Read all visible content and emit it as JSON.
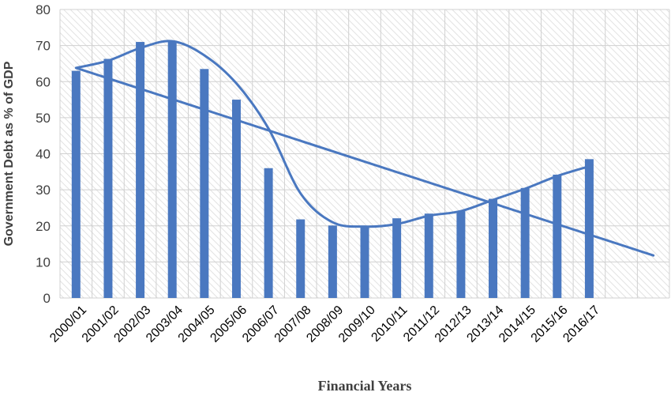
{
  "chart_data": {
    "type": "bar",
    "title": "",
    "xlabel": "Financial Years",
    "ylabel": "Government Debt as  % of GDP",
    "ylim": [
      0,
      80
    ],
    "yticks": [
      0,
      10,
      20,
      30,
      40,
      50,
      60,
      70,
      80
    ],
    "grid": true,
    "categories": [
      "2000/01",
      "2001/02",
      "2002/03",
      "2003/04",
      "2004/05",
      "2005/06",
      "2006/07",
      "2007/08",
      "2008/09",
      "2009/10",
      "2010/11",
      "2011/12",
      "2012/13",
      "2013/14",
      "2014/15",
      "2015/16",
      "2016/17"
    ],
    "total_slots": 19,
    "series": [
      {
        "type": "bar",
        "values": [
          63,
          66.3,
          71,
          71.3,
          63.5,
          55,
          36,
          21.8,
          20.1,
          19.8,
          22.1,
          23.4,
          24.1,
          27.5,
          30.5,
          34.2,
          38.5
        ]
      },
      {
        "type": "line",
        "values": [
          63.8,
          65.8,
          69.3,
          71.2,
          67.3,
          59.5,
          47,
          29,
          21,
          19.8,
          20.5,
          22.8,
          24.1,
          27.2,
          30.3,
          33.8,
          36.5
        ]
      },
      {
        "type": "trendline",
        "start": 63.8,
        "end": 11.8
      }
    ],
    "colors": {
      "bar": "#4a78c0",
      "line": "#4a78c0",
      "grid": "#d0d0d0",
      "hatch": "#e4e4e4"
    }
  }
}
